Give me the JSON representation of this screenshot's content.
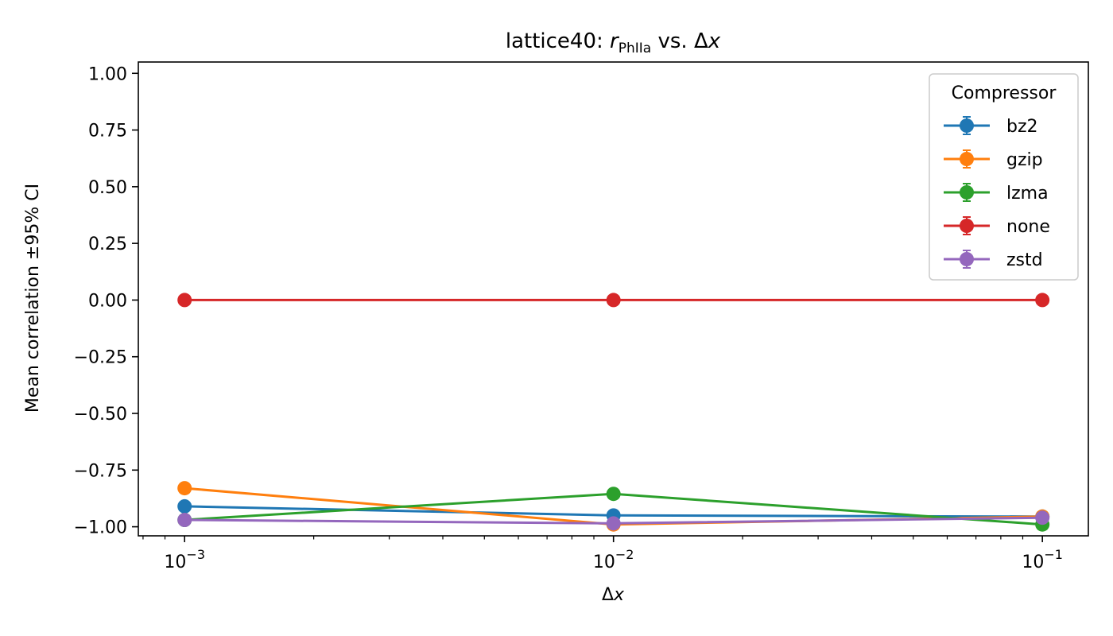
{
  "chart_data": {
    "type": "line",
    "title_main": "lattice40: ",
    "title_var": "r",
    "title_sub": "PhIIa",
    "title_tail": " vs. Δ",
    "title_var2": "x",
    "xlabel_prefix": "Δ",
    "xlabel_var": "x",
    "ylabel": "Mean correlation ±95% CI",
    "x_scale": "log",
    "x": [
      0.001,
      0.01,
      0.1
    ],
    "x_tick_labels": [
      {
        "base": "10",
        "exp": "−3"
      },
      {
        "base": "10",
        "exp": "−2"
      },
      {
        "base": "10",
        "exp": "−1"
      }
    ],
    "y_ticks": [
      1.0,
      0.75,
      0.5,
      0.25,
      0.0,
      -0.25,
      -0.5,
      -0.75,
      -1.0
    ],
    "y_tick_labels": [
      "1.00",
      "0.75",
      "0.50",
      "0.25",
      "0.00",
      "−0.25",
      "−0.50",
      "−0.75",
      "−1.00"
    ],
    "ylim": [
      -1.04,
      1.05
    ],
    "xlim": [
      0.00078,
      0.128
    ],
    "legend_title": "Compressor",
    "legend_position": "top-right",
    "series": [
      {
        "name": "bz2",
        "color": "#1f77b4",
        "values": [
          -0.91,
          -0.95,
          -0.955
        ]
      },
      {
        "name": "gzip",
        "color": "#ff7f0e",
        "values": [
          -0.83,
          -0.99,
          -0.955
        ]
      },
      {
        "name": "lzma",
        "color": "#2ca02c",
        "values": [
          -0.97,
          -0.855,
          -0.99
        ]
      },
      {
        "name": "none",
        "color": "#d62728",
        "values": [
          0.0,
          0.0,
          0.0
        ]
      },
      {
        "name": "zstd",
        "color": "#9467bd",
        "values": [
          -0.97,
          -0.985,
          -0.96
        ]
      }
    ]
  }
}
